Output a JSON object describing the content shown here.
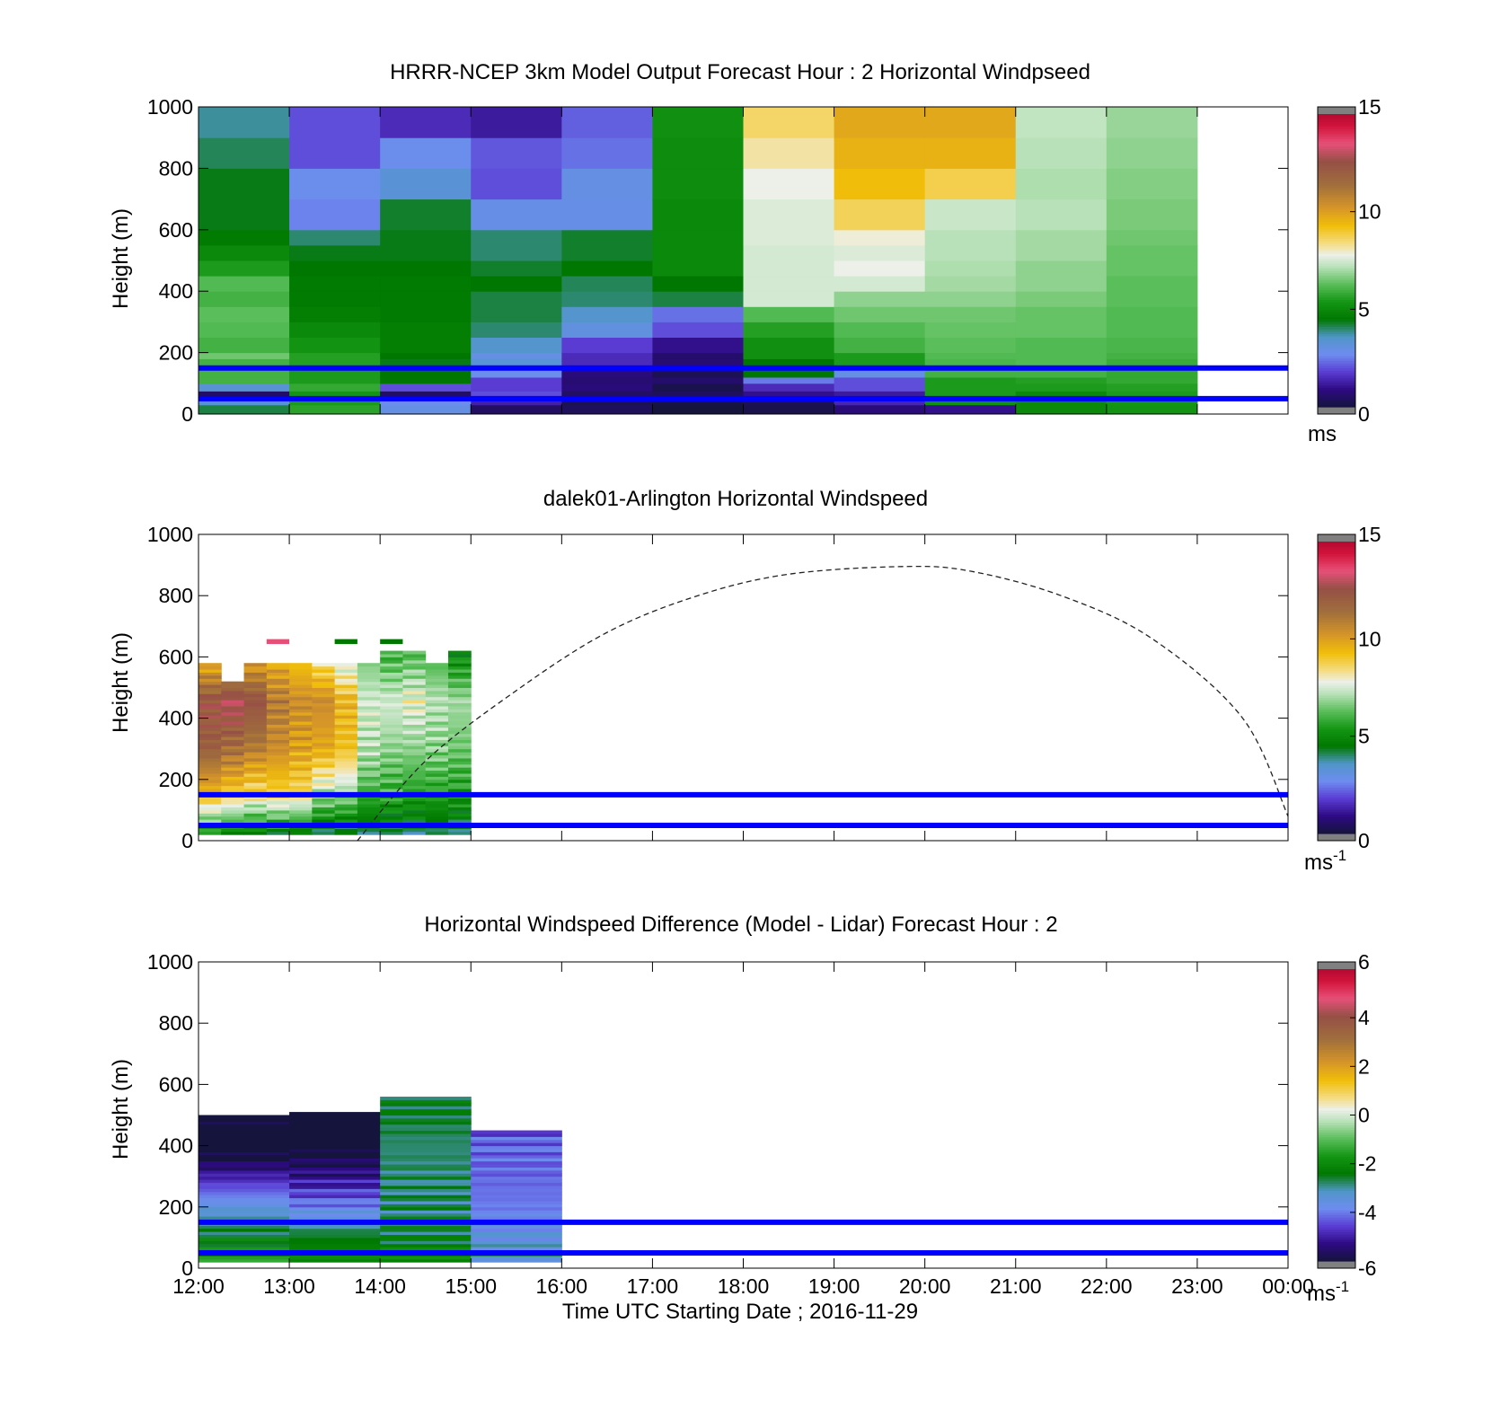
{
  "figure": {
    "xlabel": "Time UTC  Starting Date ; 2016-11-29",
    "xticks": [
      "12:00",
      "13:00",
      "14:00",
      "15:00",
      "16:00",
      "17:00",
      "18:00",
      "19:00",
      "20:00",
      "21:00",
      "22:00",
      "23:00",
      "00:00"
    ],
    "yticks": [
      "0",
      "200",
      "400",
      "600",
      "800",
      "1000"
    ],
    "ylabel": "Height (m)",
    "reference_line_color": "#0000ff",
    "reference_line_heights_m": [
      50,
      150
    ]
  },
  "chart_data": [
    {
      "type": "heatmap",
      "title": "HRRR-NCEP 3km Model Output   Forecast Hour : 2 Horizontal Windpseed",
      "ylabel": "Height (m)",
      "ylim": [
        0,
        1000
      ],
      "xlim_hours": [
        0,
        12
      ],
      "colorbar": {
        "min": 0,
        "max": 15,
        "ticks": [
          "0",
          "5",
          "10",
          "15"
        ],
        "unit": "ms"
      },
      "time_labels": [
        "12:00",
        "13:00",
        "14:00",
        "15:00",
        "16:00",
        "17:00",
        "18:00",
        "19:00",
        "20:00",
        "21:00",
        "22:00"
      ],
      "height_edges": [
        0,
        30,
        50,
        60,
        75,
        100,
        120,
        150,
        180,
        200,
        250,
        300,
        350,
        400,
        450,
        500,
        550,
        600,
        700,
        800,
        900,
        1000
      ],
      "values": [
        [
          4.2,
          3.5,
          0.8,
          0.5,
          3.3,
          6.0,
          6.0,
          6.0,
          6.5,
          6.0,
          6.2,
          6.3,
          6.0,
          6.2,
          5.5,
          5.0,
          4.6,
          4.4,
          4.4,
          4.1,
          3.8
        ],
        [
          5.7,
          5.5,
          5.5,
          5.4,
          5.8,
          5.5,
          5.5,
          5.6,
          5.6,
          5.3,
          5.0,
          4.7,
          4.6,
          4.6,
          4.5,
          4.4,
          4.0,
          2.6,
          2.8,
          2.0,
          2.0
        ],
        [
          3.0,
          2.8,
          0.8,
          0.5,
          2.0,
          4.5,
          4.5,
          4.4,
          4.5,
          4.7,
          4.7,
          4.6,
          4.6,
          4.6,
          4.5,
          4.4,
          4.4,
          4.3,
          3.3,
          2.8,
          1.5
        ],
        [
          0.5,
          1.3,
          1.5,
          2.0,
          1.8,
          1.8,
          2.8,
          3.3,
          3.0,
          3.5,
          4.0,
          4.2,
          4.2,
          4.5,
          4.3,
          4.0,
          4.0,
          2.9,
          2.0,
          2.1,
          1.2
        ],
        [
          0.4,
          0.3,
          0.5,
          0.5,
          0.8,
          0.7,
          0.8,
          1.5,
          1.5,
          1.8,
          3.1,
          3.5,
          4.0,
          4.1,
          4.5,
          4.3,
          4.3,
          2.9,
          3.0,
          2.4,
          2.2
        ],
        [
          0.0,
          0.1,
          0.5,
          0.4,
          0.2,
          0.6,
          0.3,
          0.7,
          0.6,
          1.0,
          2.0,
          2.4,
          4.2,
          4.5,
          5.0,
          5.0,
          5.0,
          5.0,
          5.1,
          5.1,
          5.2
        ],
        [
          0.2,
          0.3,
          1.6,
          1.0,
          1.5,
          2.5,
          4.5,
          4.5,
          5.2,
          5.2,
          5.6,
          6.2,
          7.5,
          7.5,
          7.5,
          7.5,
          7.6,
          7.6,
          7.8,
          8.2,
          8.6
        ],
        [
          0.8,
          1.4,
          1.2,
          1.2,
          2.0,
          2.0,
          3.0,
          5.5,
          5.5,
          6.0,
          6.2,
          6.5,
          6.8,
          7.5,
          7.8,
          7.6,
          7.9,
          8.7,
          9.3,
          9.6,
          9.8
        ],
        [
          1.0,
          5.2,
          5.4,
          5.5,
          5.5,
          5.5,
          6.0,
          6.1,
          6.2,
          6.3,
          6.4,
          6.5,
          6.8,
          7.0,
          7.1,
          7.2,
          7.2,
          7.4,
          8.8,
          9.6,
          9.8
        ],
        [
          5.0,
          5.0,
          5.0,
          5.0,
          5.5,
          5.6,
          6.0,
          6.2,
          6.2,
          6.2,
          6.4,
          6.4,
          6.6,
          6.8,
          6.8,
          7.0,
          7.0,
          7.2,
          7.1,
          7.2,
          7.3
        ],
        [
          5.3,
          5.4,
          5.5,
          5.5,
          5.6,
          5.8,
          5.8,
          5.9,
          6.0,
          6.1,
          6.2,
          6.2,
          6.3,
          6.3,
          6.4,
          6.4,
          6.5,
          6.6,
          6.7,
          6.8,
          6.9
        ]
      ]
    },
    {
      "type": "heatmap",
      "title": "dalek01-Arlington  Horizontal Windspeed",
      "ylabel": "Height (m)",
      "ylim": [
        0,
        1000
      ],
      "xlim_hours": [
        0,
        12
      ],
      "colorbar": {
        "min": 0,
        "max": 15,
        "ticks": [
          "0",
          "5",
          "10",
          "15"
        ],
        "unit": "ms",
        "unit_superscript": "-1"
      },
      "time_labels": [
        "12:00",
        "12:15",
        "12:30",
        "12:45",
        "13:00",
        "13:15",
        "13:30",
        "13:45",
        "14:00",
        "14:15",
        "14:30",
        "14:45"
      ],
      "top_heights_m": [
        580,
        520,
        580,
        580,
        580,
        580,
        580,
        580,
        620,
        620,
        580,
        620
      ],
      "profile_anchor_heights_m": [
        0,
        150,
        300,
        450,
        600
      ],
      "profile_anchor_values": [
        [
          4.5,
          9.5,
          12.0,
          12.5,
          9.0
        ],
        [
          4.2,
          9.0,
          11.5,
          13.0,
          9.0
        ],
        [
          4.0,
          8.5,
          11.0,
          12.5,
          9.5
        ],
        [
          4.0,
          8.8,
          10.5,
          11.0,
          9.5
        ],
        [
          4.0,
          8.6,
          10.0,
          10.5,
          9.0
        ],
        [
          3.6,
          7.2,
          9.8,
          10.5,
          8.0
        ],
        [
          3.6,
          7.0,
          9.2,
          9.5,
          7.0
        ],
        [
          3.6,
          6.0,
          7.2,
          7.5,
          6.5
        ],
        [
          3.8,
          5.8,
          6.8,
          7.5,
          6.0
        ],
        [
          3.8,
          5.6,
          6.8,
          7.8,
          6.2
        ],
        [
          3.8,
          5.6,
          6.8,
          7.2,
          6.0
        ],
        [
          3.8,
          5.5,
          6.5,
          7.0,
          5.0
        ]
      ],
      "isolated_returns": [
        {
          "time": "12:45",
          "height_m": 650,
          "value": 13.5
        },
        {
          "time": "13:30",
          "height_m": 650,
          "value": 4.5
        },
        {
          "time": "14:00",
          "height_m": 650,
          "value": 4.5
        }
      ],
      "dashed_curve": {
        "time_hours": [
          1.75,
          2.5,
          3.5,
          4.5,
          5.5,
          6.5,
          7.75,
          8.5,
          9.5,
          10.5,
          11.5,
          12.0
        ],
        "height_m": [
          0,
          260,
          490,
          680,
          800,
          870,
          895,
          880,
          800,
          660,
          400,
          80
        ]
      }
    },
    {
      "type": "heatmap",
      "title": "Horizontal Windspeed Difference (Model - Lidar) Forecast Hour : 2",
      "ylabel": "Height (m)",
      "ylim": [
        0,
        1000
      ],
      "xlim_hours": [
        0,
        12
      ],
      "colorbar": {
        "min": -6,
        "max": 6,
        "ticks": [
          "-6",
          "-4",
          "-2",
          "0",
          "2",
          "4",
          "6"
        ],
        "unit": "ms",
        "unit_superscript": "-1"
      },
      "time_labels": [
        "12:00",
        "13:00",
        "14:00",
        "15:00"
      ],
      "top_heights_m": [
        500,
        510,
        560,
        450
      ],
      "profile_anchor_heights_m": [
        0,
        100,
        200,
        300,
        400,
        500
      ],
      "profile_anchor_values": [
        [
          -1.5,
          -2.5,
          -3.5,
          -5.0,
          -6.5,
          -6.0
        ],
        [
          -1.8,
          -2.5,
          -4.0,
          -5.3,
          -6.5,
          -6.5
        ],
        [
          -2.0,
          -2.5,
          -2.8,
          -2.8,
          -2.8,
          -2.5
        ],
        [
          -3.0,
          -3.5,
          -4.0,
          -4.2,
          -4.2,
          -4.8
        ]
      ]
    }
  ]
}
